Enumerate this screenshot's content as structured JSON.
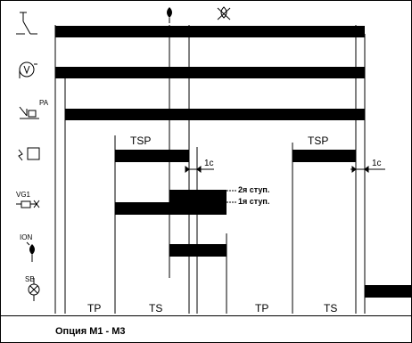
{
  "icons": {
    "row1": "thermostat-switch-icon",
    "row2": "fan-pump-icon",
    "row3": "pressure-switch-pa-icon",
    "row4": "heater-a-icon",
    "row5": "gas-valve-vg1-icon",
    "row6": "ignition-ion-icon",
    "row7": "sbl-lamp-icon",
    "top_flame_on": "flame-icon",
    "top_flame_off": "flame-crossed-icon"
  },
  "labels": {
    "row3_sub": "PA",
    "row5_sub": "VG1",
    "row6_sub": "ION",
    "row7_sub": "SB",
    "tsp_1": "TSP",
    "tsp_2": "TSP",
    "delay_1": "1c",
    "delay_2": "1c",
    "stage_2": "2я ступ.",
    "stage_1": "1я ступ."
  },
  "phases": [
    "TP",
    "TS",
    "TP",
    "TS"
  ],
  "footer": "Опция  М1 - М3"
}
